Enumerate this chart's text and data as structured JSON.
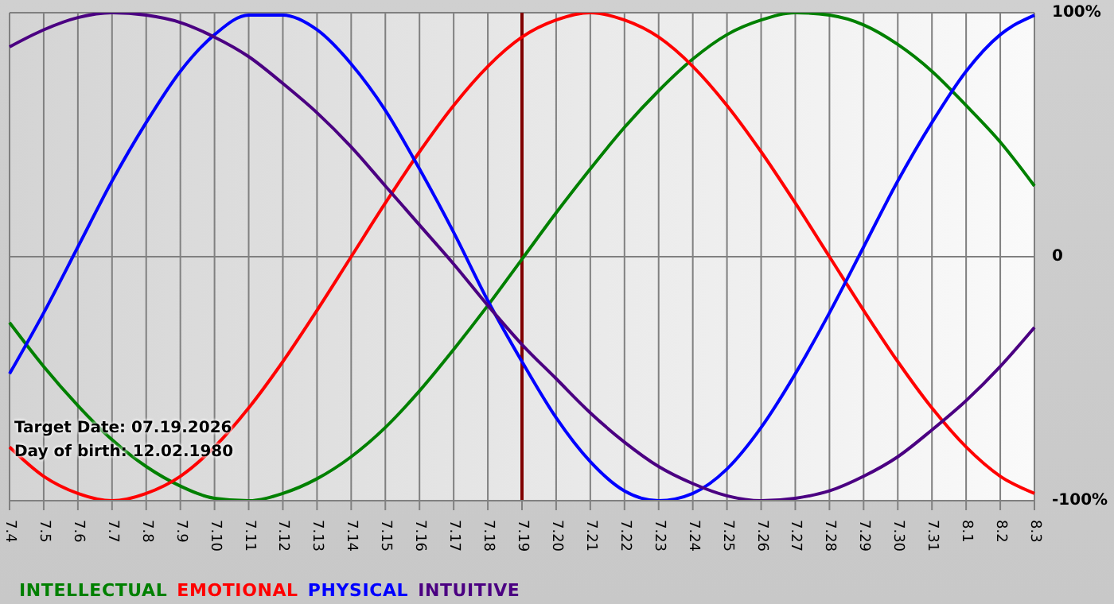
{
  "chart_data": {
    "type": "line",
    "categories": [
      "7.4",
      "7.5",
      "7.6",
      "7.7",
      "7.8",
      "7.9",
      "7.10",
      "7.11",
      "7.12",
      "7.13",
      "7.14",
      "7.15",
      "7.16",
      "7.17",
      "7.18",
      "7.19",
      "7.20",
      "7.21",
      "7.22",
      "7.23",
      "7.24",
      "7.25",
      "7.26",
      "7.27",
      "7.28",
      "7.29",
      "7.30",
      "7.31",
      "8.1",
      "8.2",
      "8.3"
    ],
    "series": [
      {
        "name": "INTELLECTUAL",
        "color": "#008000",
        "values": [
          -27,
          -45,
          -61,
          -75,
          -86,
          -94,
          -99,
          -100,
          -97,
          -91,
          -82,
          -70,
          -55,
          -38,
          -20,
          -1,
          18,
          36,
          53,
          68,
          81,
          91,
          97,
          100,
          99,
          95,
          87,
          76,
          62,
          47,
          29
        ]
      },
      {
        "name": "EMOTIONAL",
        "color": "#ff0000",
        "values": [
          -78,
          -90,
          -97,
          -100,
          -97,
          -90,
          -78,
          -62,
          -43,
          -22,
          0,
          22,
          43,
          62,
          78,
          90,
          97,
          100,
          97,
          90,
          78,
          62,
          43,
          22,
          0,
          -22,
          -43,
          -62,
          -78,
          -90,
          -97
        ]
      },
      {
        "name": "PHYSICAL",
        "color": "#0000ff",
        "values": [
          -48,
          -23,
          4,
          31,
          55,
          76,
          91,
          99,
          99,
          93,
          79,
          60,
          36,
          10,
          -18,
          -43,
          -66,
          -84,
          -96,
          -100,
          -97,
          -87,
          -70,
          -48,
          -23,
          4,
          31,
          55,
          76,
          91,
          99
        ]
      },
      {
        "name": "INTUITIVE",
        "color": "#4b0082",
        "values": [
          86,
          93,
          98,
          100,
          99,
          96,
          90,
          82,
          71,
          59,
          45,
          29,
          13,
          -3,
          -20,
          -36,
          -50,
          -64,
          -76,
          -86,
          -93,
          -98,
          -100,
          -99,
          -96,
          -90,
          -82,
          -71,
          -59,
          -45,
          -29
        ]
      }
    ],
    "ylim": [
      -100,
      100
    ],
    "yticks": [
      {
        "value": -100,
        "label": "-100%"
      },
      0,
      {
        "value": 100,
        "label": "100%"
      }
    ],
    "grid": true,
    "legend": "bottom left",
    "marker": "none",
    "line_style": "solid",
    "ref_lines": [
      {
        "axis": "x",
        "value": "7.19",
        "color": "#800000"
      }
    ],
    "annotations": [
      "Target Date: 07.19.2026",
      "Day of birth: 12.02.1980"
    ]
  }
}
